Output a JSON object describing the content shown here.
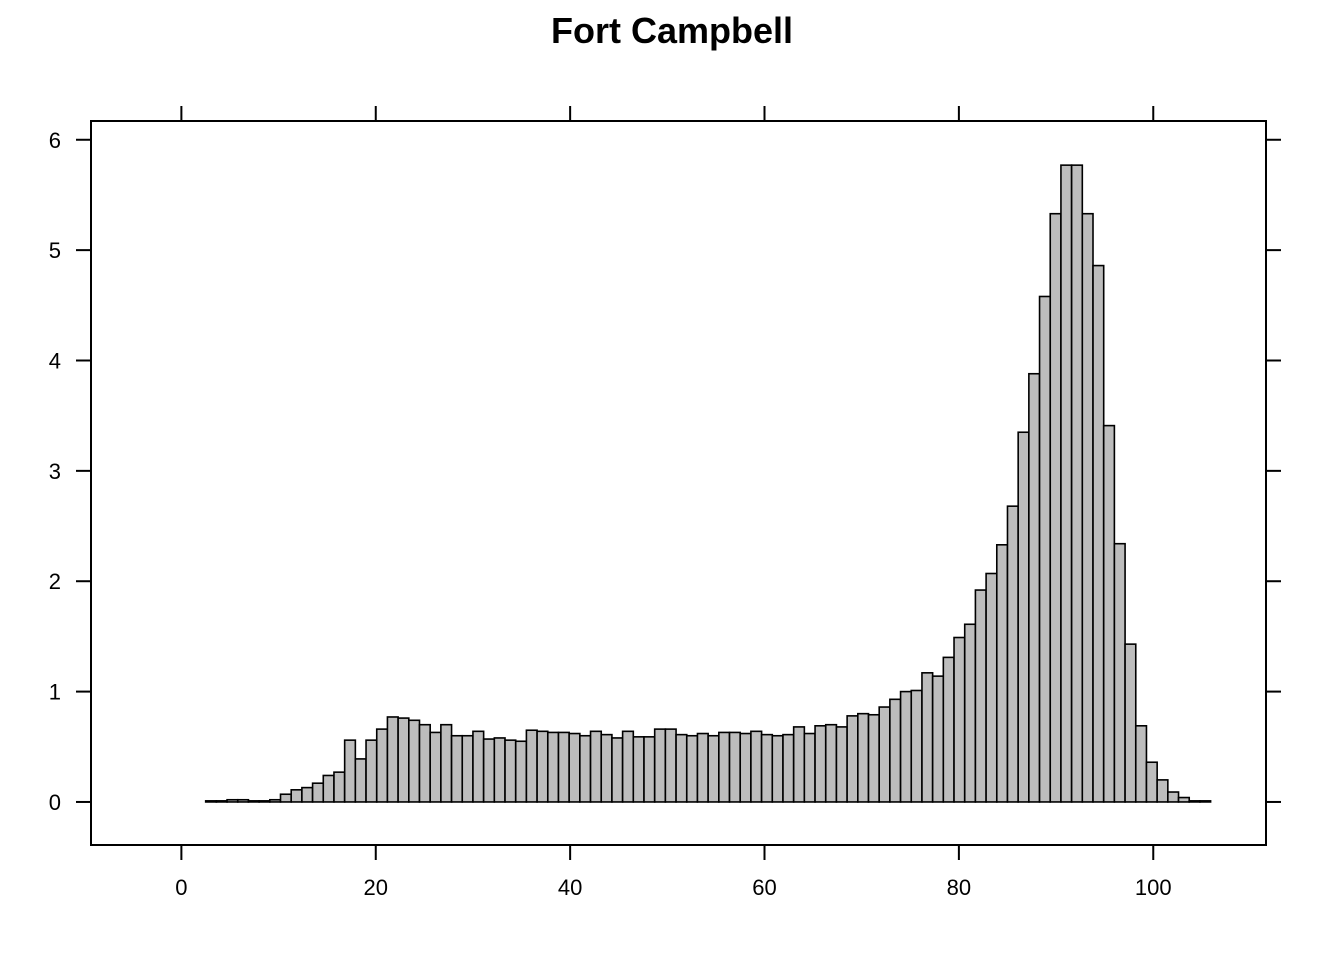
{
  "chart_data": {
    "type": "bar",
    "title": "Fort Campbell",
    "xlabel": "",
    "ylabel": "",
    "xlim": [
      -9.3,
      111.6
    ],
    "ylim": [
      -0.39,
      6.17
    ],
    "xticks": [
      0,
      20,
      40,
      60,
      80,
      100
    ],
    "yticks": [
      0,
      1,
      2,
      3,
      4,
      5,
      6
    ],
    "grid": false,
    "bin_start": -3,
    "bin_width": 1.1,
    "bar_color": "#bdbdbd",
    "edge_color": "#000000",
    "values": [
      0,
      0,
      0,
      0,
      0,
      0.01,
      0.01,
      0.02,
      0.02,
      0.01,
      0.01,
      0.02,
      0.07,
      0.11,
      0.13,
      0.17,
      0.24,
      0.27,
      0.56,
      0.39,
      0.56,
      0.66,
      0.77,
      0.76,
      0.74,
      0.7,
      0.63,
      0.7,
      0.6,
      0.6,
      0.64,
      0.57,
      0.58,
      0.56,
      0.55,
      0.65,
      0.64,
      0.63,
      0.63,
      0.62,
      0.6,
      0.64,
      0.61,
      0.58,
      0.64,
      0.59,
      0.59,
      0.66,
      0.66,
      0.61,
      0.6,
      0.62,
      0.6,
      0.63,
      0.63,
      0.62,
      0.64,
      0.61,
      0.6,
      0.61,
      0.68,
      0.62,
      0.69,
      0.7,
      0.68,
      0.78,
      0.8,
      0.79,
      0.86,
      0.93,
      1.0,
      1.01,
      1.17,
      1.14,
      1.31,
      1.49,
      1.61,
      1.92,
      2.07,
      2.33,
      2.68,
      3.35,
      3.88,
      4.58,
      5.33,
      5.77,
      5.77,
      5.33,
      4.86,
      3.41,
      2.34,
      1.43,
      0.69,
      0.36,
      0.2,
      0.09,
      0.04,
      0.01,
      0.01,
      0,
      0,
      0,
      0,
      0,
      0,
      0,
      0
    ]
  }
}
